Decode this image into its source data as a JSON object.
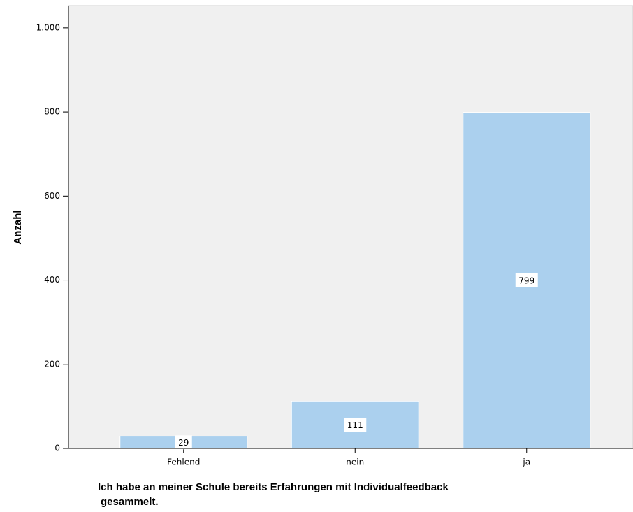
{
  "chart_data": {
    "type": "bar",
    "categories": [
      "Fehlend",
      "nein",
      "ja"
    ],
    "values": [
      29,
      111,
      799
    ],
    "color": "#abd0ee",
    "y_label": "Anzahl",
    "x_label": [
      "Ich habe an meiner Schule bereits Erfahrungen mit Individualfeedback",
      "gesammelt."
    ],
    "ylim": [
      0,
      1053
    ],
    "yticks": [
      0,
      200,
      400,
      600,
      800,
      {
        "value": 1000,
        "label": "1.000"
      }
    ],
    "grid": false
  }
}
